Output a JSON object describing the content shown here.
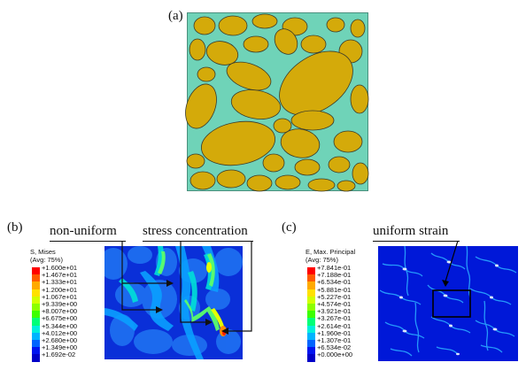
{
  "panel_a": {
    "label": "(a)"
  },
  "panel_b": {
    "label": "(b)",
    "callout_left": "non-uniform",
    "callout_right": "stress concentration",
    "legend": {
      "title_line1": "S, Mises",
      "title_line2": "(Avg: 75%)",
      "values": [
        "+1.600e+01",
        "+1.467e+01",
        "+1.333e+01",
        "+1.200e+01",
        "+1.067e+01",
        "+9.339e+00",
        "+8.007e+00",
        "+6.675e+00",
        "+5.344e+00",
        "+4.012e+00",
        "+2.680e+00",
        "+1.349e+00",
        "+1.692e-02"
      ]
    }
  },
  "panel_c": {
    "label": "(c)",
    "callout": "uniform strain",
    "legend": {
      "title_line1": "E, Max. Principal",
      "title_line2": "(Avg: 75%)",
      "values": [
        "+7.841e-01",
        "+7.188e-01",
        "+6.534e-01",
        "+5.881e-01",
        "+5.227e-01",
        "+4.574e-01",
        "+3.921e-01",
        "+3.267e-01",
        "+2.614e-01",
        "+1.960e-01",
        "+1.307e-01",
        "+6.534e-02",
        "+0.000e+00"
      ]
    }
  },
  "colors": {
    "matrix": "#6fd3b8",
    "particle": "#d4aa0a",
    "contour_scale": [
      "#ff0000",
      "#ff5a00",
      "#ffaa00",
      "#ffe100",
      "#d2ff00",
      "#8cff00",
      "#3cff00",
      "#00ff78",
      "#00f0dc",
      "#00b4ff",
      "#0064ff",
      "#0014f0",
      "#0000c8"
    ]
  }
}
